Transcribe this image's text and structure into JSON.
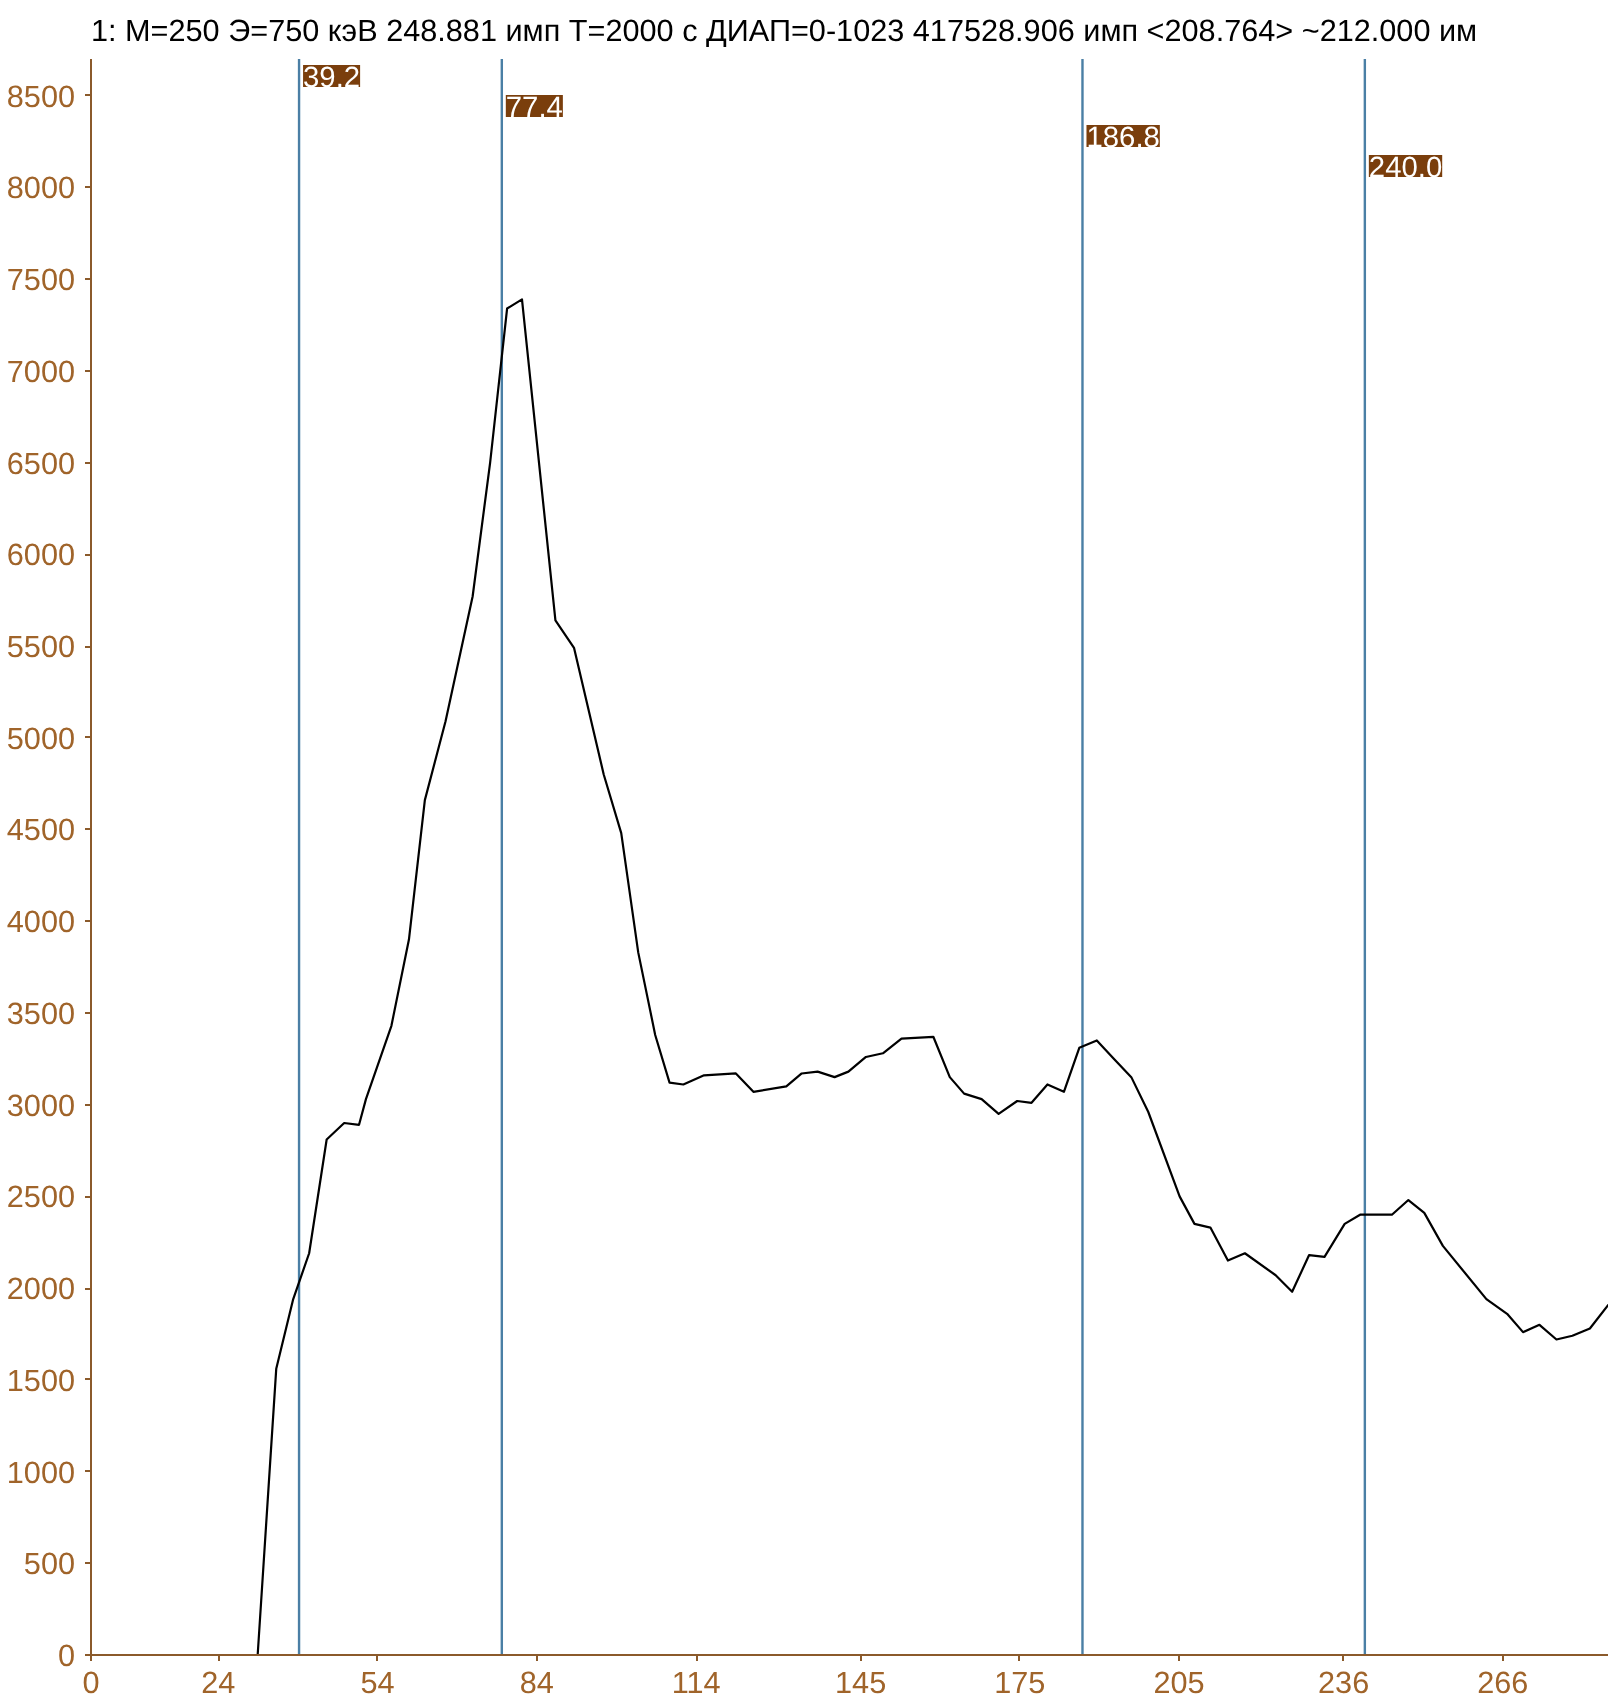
{
  "chart_data": {
    "type": "line",
    "title": "1: M=250 Э=750 кэВ  248.881 имп   T=2000 с    ДИАП=0-1023 417528.906 имп <208.764> ~212.000 им",
    "x": [
      0,
      31.4,
      34.9,
      38.1,
      41.1,
      44.4,
      47.7,
      50.5,
      51.8,
      56.6,
      59.9,
      62.9,
      66.8,
      71.9,
      75.2,
      78.4,
      81.2,
      87.5,
      91.0,
      96.6,
      99.9,
      103.1,
      106.3,
      109.0,
      111.6,
      115.5,
      121.5,
      124.8,
      131.0,
      133.9,
      136.9,
      140.1,
      142.7,
      146.0,
      149.2,
      152.7,
      158.7,
      161.8,
      164.5,
      167.8,
      171.0,
      174.5,
      177.2,
      180.2,
      183.3,
      186.2,
      189.5,
      192.7,
      196.0,
      199.2,
      205.1,
      207.9,
      210.9,
      214.2,
      217.4,
      223.2,
      226.3,
      229.5,
      232.4,
      236.2,
      239.1,
      245.1,
      248.2,
      251.2,
      254.7,
      262.9,
      266.8,
      269.8,
      272.9,
      276.1,
      279.1,
      282.4,
      285.9
    ],
    "series": [
      {
        "color": "#000000",
        "values": [
          0,
          0,
          1560,
          1940,
          2190,
          2810,
          2900,
          2890,
          3030,
          3430,
          3900,
          4660,
          5090,
          5770,
          6500,
          7340,
          7390,
          5640,
          5490,
          4800,
          4480,
          3830,
          3380,
          3120,
          3110,
          3160,
          3170,
          3070,
          3100,
          3170,
          3180,
          3150,
          3180,
          3260,
          3280,
          3360,
          3370,
          3150,
          3060,
          3030,
          2950,
          3020,
          3010,
          3110,
          3070,
          3310,
          3350,
          3250,
          3150,
          2960,
          2500,
          2350,
          2330,
          2150,
          2190,
          2070,
          1980,
          2180,
          2170,
          2350,
          2400,
          2400,
          2480,
          2410,
          2230,
          1940,
          1860,
          1760,
          1800,
          1720,
          1740,
          1780,
          1910
        ]
      }
    ],
    "xlim": [
      0,
      286
    ],
    "ylim": [
      0,
      8700
    ],
    "xticks": [
      0,
      24,
      54,
      84,
      114,
      145,
      175,
      205,
      236,
      266
    ],
    "yticks": [
      0,
      500,
      1000,
      1500,
      2000,
      2500,
      3000,
      3500,
      4000,
      4500,
      5000,
      5500,
      6000,
      6500,
      7000,
      7500,
      8000,
      8500
    ],
    "ref_lines": [
      {
        "axis": "x",
        "value": 39.2,
        "label": "39.2",
        "color": "#4a7fa5"
      },
      {
        "axis": "x",
        "value": 77.4,
        "label": "77.4",
        "color": "#4a7fa5"
      },
      {
        "axis": "x",
        "value": 186.8,
        "label": "186.8",
        "color": "#4a7fa5"
      },
      {
        "axis": "x",
        "value": 240.0,
        "label": "240.0",
        "color": "#4a7fa5"
      }
    ],
    "grid": false,
    "marker": "none",
    "line_style": "solid"
  }
}
